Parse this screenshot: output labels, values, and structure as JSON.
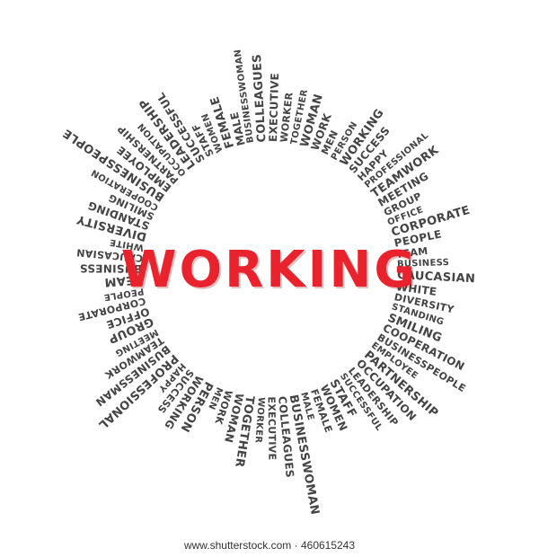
{
  "center_word": "WORKING",
  "footer_text": "www.shutterstock.com · 460615243",
  "colors": {
    "center_word": "#e8232e",
    "rays": "#444444",
    "footer": "#333333"
  },
  "ring_words": [
    "BUSINESSWOMAN",
    "COLLEAGUES",
    "EXECUTIVE",
    "WORKER",
    "TOGETHER",
    "WOMAN",
    "WORK",
    "MEN",
    "PERSON",
    "WORKING",
    "SUCCESS",
    "HAPPY",
    "PROFESSIONAL",
    "TEAMWORK",
    "MEETING",
    "GROUP",
    "OFFICE",
    "CORPORATE",
    "PEOPLE",
    "TEAM",
    "BUSINESS",
    "CAUCASIAN",
    "WHITE",
    "DIVERSITY",
    "STANDING",
    "SMILING",
    "COOPERATION",
    "BUSINESSPEOPLE",
    "EMPLOYEE",
    "PARTNERSHIP",
    "OCCUPATION",
    "LEADERSHIP",
    "SUCCESSFUL",
    "STAFF",
    "WOMEN",
    "FEMALE",
    "MALE",
    "BUSINESSWOMAN",
    "COLLEAGUES",
    "EXECUTIVE",
    "WORKER",
    "TOGETHER",
    "WOMAN",
    "WORK",
    "MEN",
    "PERSON",
    "WORKING",
    "SUCCESS",
    "HAPPY",
    "PROFESSIONAL",
    "BUSINESSMAN",
    "TEAMWORK",
    "MEETING",
    "GROUP",
    "OFFICE",
    "CORPORATE",
    "PEOPLE",
    "TEAM",
    "BUSINESS",
    "CAUCASIAN",
    "WHITE",
    "DIVERSITY",
    "STANDING",
    "SMILING",
    "COOPERATION",
    "BUSINESSPEOPLE",
    "EMPLOYEE",
    "PARTNERSHIP",
    "OCCUPATION",
    "LEADERSHIP",
    "SUCCESSFUL",
    "STAFF",
    "WOMEN",
    "FEMALE",
    "MALE"
  ]
}
